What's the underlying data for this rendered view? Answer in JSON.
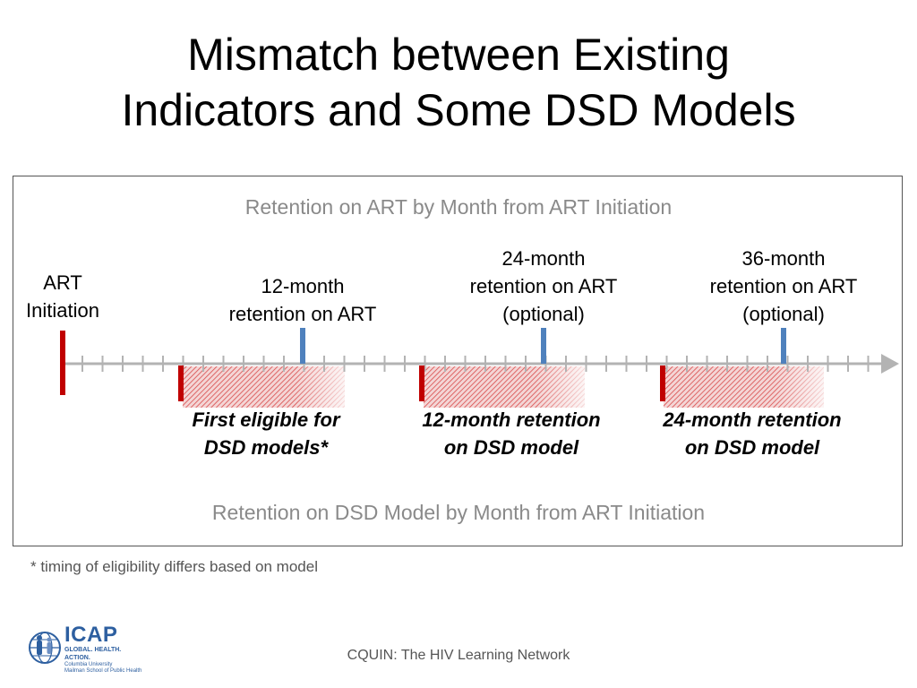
{
  "slide": {
    "title_lines": [
      "Mismatch between Existing",
      "Indicators and Some DSD Models"
    ],
    "footnote": "* timing of eligibility differs based on model",
    "footer": "CQUIN: The HIV Learning Network"
  },
  "diagram": {
    "top_caption": "Retention on ART by Month from ART Initiation",
    "bottom_caption": "Retention on DSD Model by Month from ART Initiation",
    "art_labels": [
      {
        "lines": [
          "ART",
          "Initiation"
        ]
      },
      {
        "lines": [
          "12-month",
          "retention on ART"
        ]
      },
      {
        "lines": [
          "24-month",
          "retention on ART",
          "(optional)"
        ]
      },
      {
        "lines": [
          "36-month",
          "retention on ART",
          "(optional)"
        ]
      }
    ],
    "dsd_labels": [
      {
        "lines": [
          "First eligible for",
          "DSD models*"
        ]
      },
      {
        "lines": [
          "12-month retention",
          "on DSD model"
        ]
      },
      {
        "lines": [
          "24-month retention",
          "on DSD model"
        ]
      }
    ],
    "colors": {
      "red_marker": "#c00000",
      "blue_marker": "#4f81bd",
      "axis": "#b3b3b3",
      "caption": "#8a8a8a"
    }
  },
  "logo": {
    "name": "ICAP",
    "tagline": "GLOBAL. HEALTH. ACTION.",
    "sub_lines": [
      "Columbia University",
      "Mailman School of Public Health"
    ]
  }
}
